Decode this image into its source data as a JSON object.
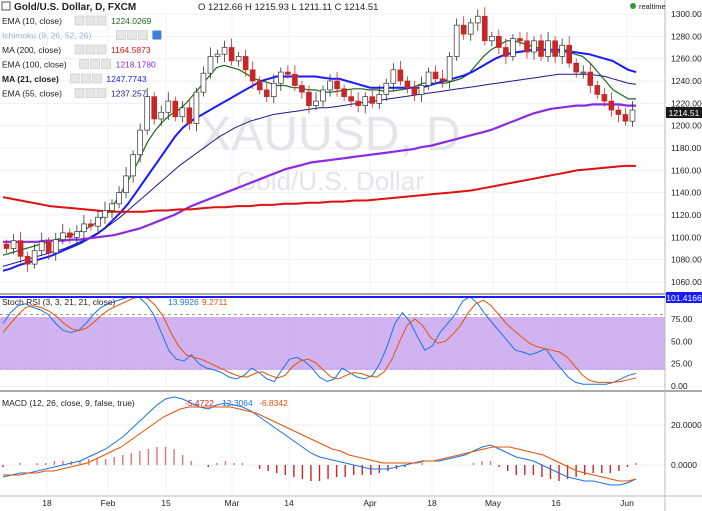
{
  "header": {
    "symbol": "Gold/U.S. Dollar, D, FXCM",
    "ohlc": "O 1212.66  H 1215.93  L 1211.11  C 1214.51",
    "realtime": "realtime"
  },
  "legend": [
    {
      "label": "EMA (10, close)",
      "value": "1224.0269",
      "color": "#1a6b1a"
    },
    {
      "label": "Ichimoku (9, 26, 52, 26)",
      "value": "",
      "color": "#8aa"
    },
    {
      "label": "MA (200, close)",
      "value": "1164.5873",
      "color": "#e01010"
    },
    {
      "label": "EMA (100, close)",
      "value": "1218.1780",
      "color": "#8a2be2"
    },
    {
      "label": "MA (21, close)",
      "value": "1247.7743",
      "color": "#1a1aff"
    },
    {
      "label": "EMA (55, close)",
      "value": "1237.257",
      "color": "#1a1a8a"
    }
  ],
  "watermark": {
    "big": "XAUUSD, D",
    "small": "Gold/U.S. Dollar"
  },
  "price_label": "1214.51",
  "stoch_label": "Stoch RSI (3, 3, 21, 21, close)",
  "stoch_values": [
    "13.9926",
    "9.2711"
  ],
  "stoch_price_label": "101.4166",
  "macd_label": "MACD (12, 26, close, 9, false, true)",
  "macd_values": [
    "-5.4722",
    "12.3064",
    "-6.8342"
  ],
  "colors": {
    "up": "#2e7d32",
    "down": "#c62828",
    "candle_body_up": "#ffffff",
    "stoch_band": "#c9a6f0"
  },
  "chart_data": [
    {
      "type": "candlestick",
      "title": "Gold/U.S. Dollar, D, FXCM",
      "y_ticks": [
        1060,
        1080,
        1100,
        1120,
        1140,
        1160,
        1180,
        1200,
        1220,
        1240,
        1260,
        1280,
        1300
      ],
      "ylim": [
        1050,
        1308
      ],
      "x_ticks": [
        "18",
        "Feb",
        "15",
        "Mar",
        "14",
        "Apr",
        "18",
        "May",
        "16",
        "Jun"
      ],
      "closes": [
        1090,
        1097,
        1083,
        1076,
        1088,
        1096,
        1086,
        1098,
        1104,
        1100,
        1105,
        1112,
        1110,
        1118,
        1124,
        1130,
        1140,
        1155,
        1174,
        1196,
        1226,
        1206,
        1212,
        1222,
        1208,
        1216,
        1202,
        1230,
        1247,
        1262,
        1264,
        1270,
        1258,
        1262,
        1250,
        1240,
        1232,
        1226,
        1238,
        1248,
        1246,
        1236,
        1230,
        1218,
        1222,
        1232,
        1240,
        1233,
        1226,
        1222,
        1218,
        1226,
        1220,
        1228,
        1238,
        1250,
        1240,
        1234,
        1228,
        1236,
        1248,
        1242,
        1240,
        1262,
        1290,
        1282,
        1292,
        1298,
        1276,
        1280,
        1270,
        1262,
        1278,
        1276,
        1266,
        1276,
        1262,
        1276,
        1262,
        1272,
        1256,
        1248,
        1248,
        1236,
        1228,
        1222,
        1214,
        1210,
        1204,
        1214
      ],
      "series": [
        {
          "name": "EMA (10, close)",
          "values": [
            1084,
            1086,
            1088,
            1090,
            1092,
            1094,
            1096,
            1098,
            1100,
            1102,
            1105,
            1108,
            1112,
            1118,
            1125,
            1134,
            1146,
            1158,
            1172,
            1186,
            1196,
            1204,
            1210,
            1214,
            1220,
            1228,
            1236,
            1244,
            1252,
            1254,
            1252,
            1250,
            1246,
            1242,
            1240,
            1238,
            1236,
            1236,
            1234,
            1234,
            1232,
            1232,
            1230,
            1230,
            1231,
            1232,
            1233,
            1233,
            1232,
            1232,
            1231,
            1231,
            1232,
            1233,
            1235,
            1238,
            1238,
            1238,
            1238,
            1240,
            1242,
            1246,
            1254,
            1262,
            1268,
            1272,
            1276,
            1276,
            1274,
            1272,
            1270,
            1268,
            1266,
            1266,
            1266,
            1264,
            1262,
            1256,
            1248,
            1240,
            1232,
            1228,
            1224,
            1224
          ]
        },
        {
          "name": "MA (21, close)",
          "values": [
            1070,
            1072,
            1075,
            1077,
            1079,
            1081,
            1083,
            1086,
            1089,
            1092,
            1095,
            1099,
            1103,
            1108,
            1115,
            1122,
            1130,
            1140,
            1150,
            1160,
            1170,
            1180,
            1190,
            1198,
            1204,
            1208,
            1212,
            1216,
            1220,
            1224,
            1228,
            1232,
            1236,
            1240,
            1242,
            1244,
            1244,
            1244,
            1244,
            1244,
            1244,
            1243,
            1242,
            1242,
            1240,
            1238,
            1236,
            1234,
            1234,
            1234,
            1234,
            1234,
            1234,
            1234,
            1235,
            1237,
            1239,
            1241,
            1243,
            1245,
            1248,
            1252,
            1256,
            1260,
            1263,
            1265,
            1266,
            1267,
            1268,
            1268,
            1268,
            1268,
            1267,
            1266,
            1265,
            1264,
            1262,
            1260,
            1258,
            1254,
            1250,
            1248
          ]
        },
        {
          "name": "EMA (55, close)",
          "values": [
            1074,
            1076,
            1078,
            1080,
            1082,
            1084,
            1086,
            1088,
            1090,
            1093,
            1096,
            1099,
            1103,
            1107,
            1112,
            1117,
            1123,
            1129,
            1135,
            1141,
            1147,
            1153,
            1159,
            1165,
            1170,
            1175,
            1180,
            1185,
            1190,
            1194,
            1198,
            1201,
            1204,
            1206,
            1208,
            1210,
            1211,
            1212,
            1213,
            1214,
            1215,
            1216,
            1216,
            1217,
            1218,
            1219,
            1220,
            1221,
            1222,
            1223,
            1224,
            1225,
            1226,
            1227,
            1228,
            1229,
            1230,
            1231,
            1232,
            1233,
            1234,
            1235,
            1236,
            1237,
            1238,
            1239,
            1240,
            1241,
            1242,
            1243,
            1244,
            1245,
            1246,
            1246,
            1246,
            1246,
            1246,
            1245,
            1244,
            1242,
            1240,
            1238,
            1237
          ]
        },
        {
          "name": "EMA (100, close)",
          "values": [
            1096,
            1096,
            1096,
            1096,
            1096,
            1097,
            1097,
            1097,
            1098,
            1098,
            1099,
            1100,
            1101,
            1102,
            1104,
            1106,
            1108,
            1111,
            1114,
            1117,
            1120,
            1124,
            1128,
            1131,
            1134,
            1137,
            1140,
            1143,
            1146,
            1149,
            1152,
            1155,
            1158,
            1161,
            1163,
            1165,
            1167,
            1168,
            1169,
            1170,
            1171,
            1172,
            1173,
            1174,
            1175,
            1176,
            1177,
            1178,
            1179,
            1181,
            1182,
            1184,
            1186,
            1188,
            1190,
            1192,
            1194,
            1196,
            1199,
            1202,
            1205,
            1208,
            1211,
            1213,
            1215,
            1216,
            1217,
            1218,
            1218,
            1219,
            1219,
            1219,
            1219,
            1218,
            1218
          ]
        },
        {
          "name": "MA (200, close)",
          "values": [
            1136,
            1134,
            1132,
            1130,
            1128,
            1127,
            1126,
            1125,
            1124,
            1123,
            1123,
            1123,
            1123,
            1124,
            1124,
            1125,
            1125,
            1126,
            1127,
            1127,
            1128,
            1128,
            1129,
            1129,
            1130,
            1130,
            1131,
            1131,
            1132,
            1132,
            1133,
            1133,
            1134,
            1135,
            1136,
            1137,
            1138,
            1139,
            1140,
            1141,
            1142,
            1144,
            1146,
            1148,
            1150,
            1152,
            1154,
            1156,
            1158,
            1160,
            1161,
            1162,
            1163,
            1164,
            1164
          ]
        }
      ]
    },
    {
      "type": "line",
      "title": "Stoch RSI (3, 3, 21, 21, close)",
      "y_ticks": [
        0,
        25,
        50,
        75
      ],
      "ylim": [
        -5,
        105
      ],
      "band": [
        20,
        80
      ],
      "series": [
        {
          "name": "%K",
          "values": [
            70,
            82,
            90,
            92,
            88,
            85,
            80,
            70,
            62,
            60,
            62,
            70,
            80,
            88,
            92,
            95,
            98,
            100,
            100,
            92,
            80,
            60,
            40,
            30,
            28,
            35,
            25,
            20,
            18,
            15,
            10,
            8,
            12,
            20,
            15,
            8,
            5,
            18,
            30,
            32,
            28,
            20,
            10,
            5,
            8,
            20,
            15,
            10,
            8,
            12,
            25,
            45,
            70,
            82,
            72,
            55,
            40,
            45,
            60,
            70,
            80,
            95,
            100,
            92,
            80,
            70,
            60,
            50,
            40,
            38,
            35,
            38,
            42,
            30,
            20,
            10,
            4,
            2,
            2,
            2,
            2,
            4,
            8,
            12,
            14
          ]
        },
        {
          "name": "%D",
          "values": [
            60,
            70,
            80,
            88,
            90,
            88,
            84,
            78,
            70,
            64,
            62,
            65,
            72,
            80,
            86,
            90,
            94,
            98,
            100,
            98,
            90,
            78,
            60,
            45,
            35,
            32,
            30,
            26,
            22,
            18,
            14,
            11,
            10,
            14,
            16,
            12,
            9,
            12,
            22,
            28,
            30,
            26,
            18,
            10,
            8,
            12,
            15,
            14,
            11,
            10,
            16,
            30,
            50,
            68,
            75,
            68,
            55,
            48,
            50,
            58,
            68,
            82,
            92,
            96,
            90,
            80,
            70,
            62,
            55,
            48,
            44,
            42,
            40,
            38,
            32,
            22,
            12,
            6,
            4,
            4,
            4,
            5,
            7,
            9
          ]
        }
      ]
    },
    {
      "type": "line",
      "title": "MACD (12, 26, close, 9, false, true)",
      "y_ticks": [
        0.0,
        20.0
      ],
      "ylim": [
        -12,
        34
      ],
      "series": [
        {
          "name": "MACD",
          "values": [
            -6,
            -5,
            -4,
            -4,
            -3,
            -2,
            -1,
            0,
            1,
            2,
            4,
            6,
            8,
            11,
            14,
            18,
            22,
            26,
            30,
            33,
            34,
            33,
            31,
            29,
            28,
            30,
            31,
            30,
            29,
            27,
            24,
            21,
            18,
            15,
            12,
            9,
            6,
            4,
            3,
            2,
            1,
            0,
            -1,
            -2,
            -2,
            -2,
            -1,
            0,
            1,
            2,
            2,
            2,
            3,
            4,
            5,
            7,
            9,
            10,
            8,
            6,
            4,
            3,
            2,
            0,
            -2,
            -4,
            -6,
            -7,
            -8,
            -8,
            -9,
            -10,
            -10,
            -9,
            -7
          ]
        },
        {
          "name": "Signal",
          "values": [
            -5,
            -5,
            -5,
            -4,
            -4,
            -3,
            -3,
            -2,
            -1,
            0,
            1,
            3,
            5,
            7,
            9,
            12,
            15,
            18,
            21,
            24,
            26,
            28,
            29,
            29,
            29,
            29,
            29,
            29,
            28,
            27,
            26,
            24,
            22,
            20,
            18,
            16,
            14,
            12,
            10,
            8,
            7,
            5,
            4,
            3,
            2,
            1,
            1,
            1,
            1,
            1,
            2,
            2,
            3,
            4,
            5,
            6,
            7,
            8,
            9,
            9,
            9,
            8,
            7,
            6,
            5,
            3,
            1,
            -1,
            -3,
            -4,
            -5,
            -6,
            -7,
            -8,
            -8,
            -7
          ]
        },
        {
          "name": "Histogram",
          "values": [
            -1,
            0,
            1,
            0,
            1,
            1,
            2,
            2,
            2,
            2,
            3,
            3,
            3,
            4,
            5,
            6,
            7,
            8,
            9,
            9,
            8,
            5,
            2,
            0,
            -1,
            1,
            2,
            1,
            1,
            0,
            -2,
            -3,
            -4,
            -5,
            -6,
            -7,
            -8,
            -8,
            -7,
            -6,
            -6,
            -5,
            -5,
            -5,
            -4,
            -3,
            -2,
            -1,
            0,
            1,
            0,
            0,
            0,
            0,
            0,
            1,
            2,
            2,
            -1,
            -3,
            -5,
            -5,
            -5,
            -6,
            -7,
            -8,
            -7,
            -6,
            -5,
            -4,
            -4,
            -4,
            -3,
            -1,
            1
          ]
        }
      ]
    }
  ]
}
